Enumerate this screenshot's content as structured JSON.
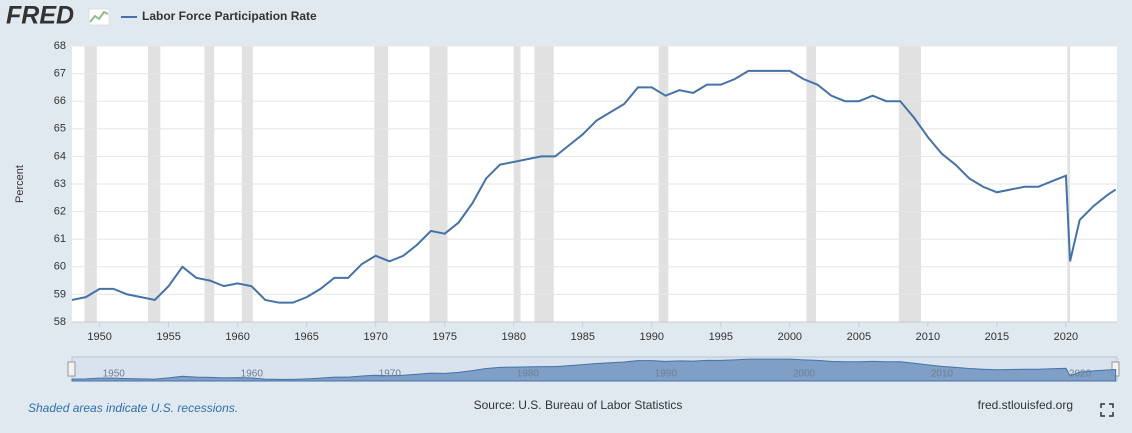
{
  "logo": "FRED",
  "chart_data": {
    "type": "line",
    "y_label": "Percent",
    "x": [
      1948,
      1949,
      1950,
      1951,
      1952,
      1953,
      1954,
      1955,
      1956,
      1957,
      1958,
      1959,
      1960,
      1961,
      1962,
      1963,
      1964,
      1965,
      1966,
      1967,
      1968,
      1969,
      1970,
      1971,
      1972,
      1973,
      1974,
      1975,
      1976,
      1977,
      1978,
      1979,
      1980,
      1981,
      1982,
      1983,
      1984,
      1985,
      1986,
      1987,
      1988,
      1989,
      1990,
      1991,
      1992,
      1993,
      1994,
      1995,
      1996,
      1997,
      1998,
      1999,
      2000,
      2001,
      2002,
      2003,
      2004,
      2005,
      2006,
      2007,
      2008,
      2009,
      2010,
      2011,
      2012,
      2013,
      2014,
      2015,
      2016,
      2017,
      2018,
      2019,
      2020,
      2020.3,
      2021,
      2022,
      2023,
      2023.6
    ],
    "series": [
      {
        "name": "Labor Force Participation Rate",
        "color": "#4572a7",
        "values": [
          58.8,
          58.9,
          59.2,
          59.2,
          59.0,
          58.9,
          58.8,
          59.3,
          60.0,
          59.6,
          59.5,
          59.3,
          59.4,
          59.3,
          58.8,
          58.7,
          58.7,
          58.9,
          59.2,
          59.6,
          59.6,
          60.1,
          60.4,
          60.2,
          60.4,
          60.8,
          61.3,
          61.2,
          61.6,
          62.3,
          63.2,
          63.7,
          63.8,
          63.9,
          64.0,
          64.0,
          64.4,
          64.8,
          65.3,
          65.6,
          65.9,
          66.5,
          66.5,
          66.2,
          66.4,
          66.3,
          66.6,
          66.6,
          66.8,
          67.1,
          67.1,
          67.1,
          67.1,
          66.8,
          66.6,
          66.2,
          66.0,
          66.0,
          66.2,
          66.0,
          66.0,
          65.4,
          64.7,
          64.1,
          63.7,
          63.2,
          62.9,
          62.7,
          62.8,
          62.9,
          62.9,
          63.1,
          63.3,
          60.2,
          61.7,
          62.2,
          62.6,
          62.8
        ]
      }
    ],
    "recessions": [
      [
        1948.9,
        1949.8
      ],
      [
        1953.5,
        1954.4
      ],
      [
        1957.6,
        1958.3
      ],
      [
        1960.3,
        1961.1
      ],
      [
        1969.9,
        1970.9
      ],
      [
        1973.9,
        1975.2
      ],
      [
        1980.0,
        1980.5
      ],
      [
        1981.5,
        1982.9
      ],
      [
        1990.5,
        1991.2
      ],
      [
        2001.2,
        2001.9
      ],
      [
        2007.9,
        2009.5
      ],
      [
        2020.1,
        2020.3
      ]
    ],
    "xlim": [
      1948,
      2023.7
    ],
    "xticks": [
      1950,
      1955,
      1960,
      1965,
      1970,
      1975,
      1980,
      1985,
      1990,
      1995,
      2000,
      2005,
      2010,
      2015,
      2020
    ],
    "ylim": [
      58,
      68
    ],
    "yticks": [
      58,
      59,
      60,
      61,
      62,
      63,
      64,
      65,
      66,
      67,
      68
    ],
    "grid": true,
    "recession_color": "#e1e1e1",
    "note": "Shaded areas indicate U.S. recessions.",
    "source": "Source: U.S. Bureau of Labor Statistics",
    "site": "fred.stlouisfed.org"
  }
}
